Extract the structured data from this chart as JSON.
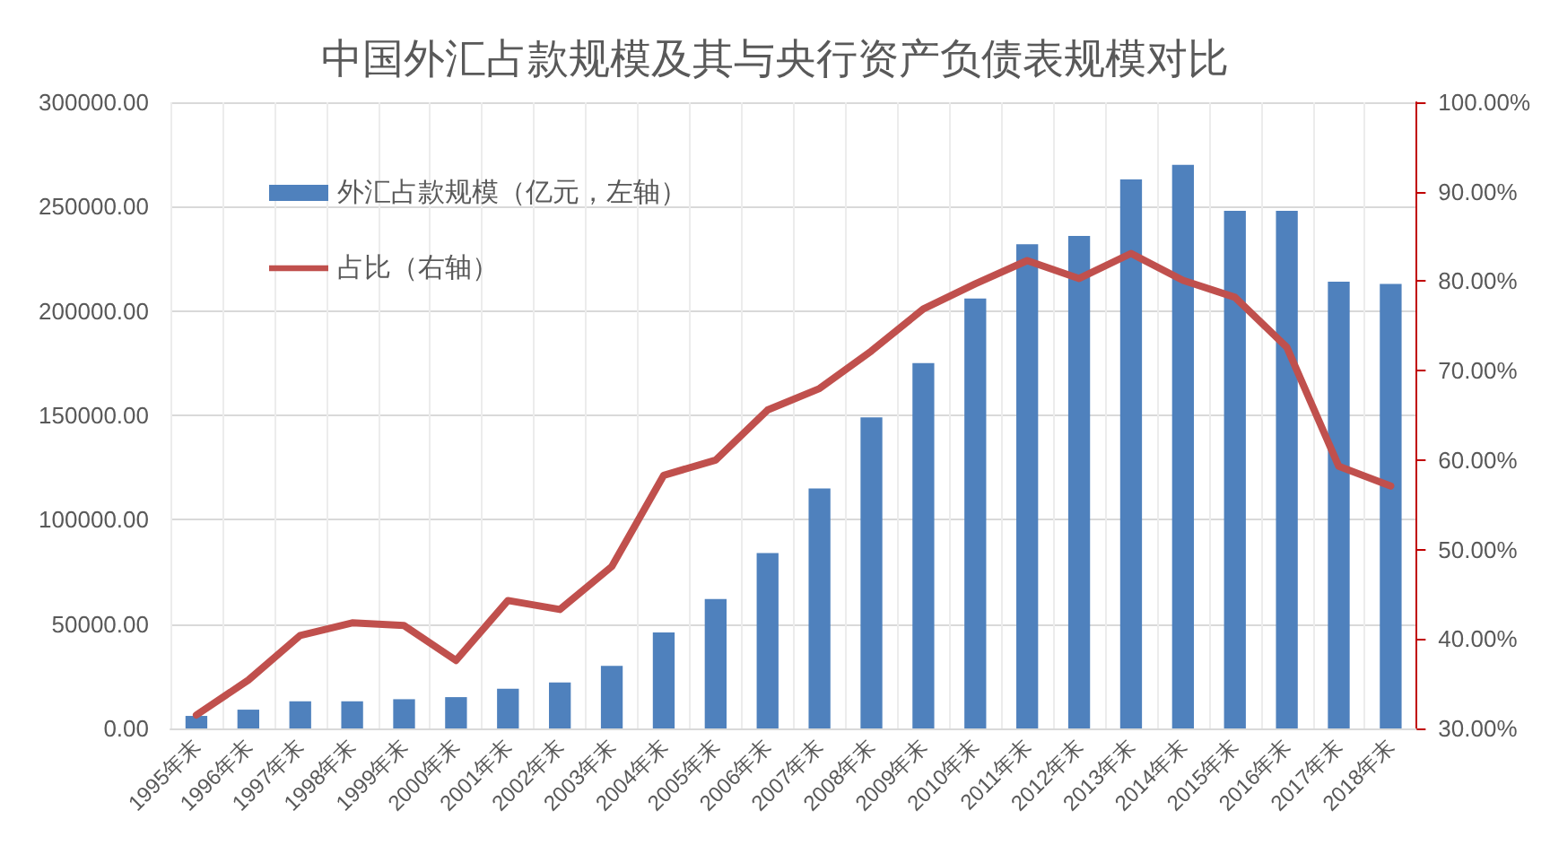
{
  "chart_data": {
    "type": "bar",
    "title": "中国外汇占款规模及其与央行资产负债表规模对比",
    "categories": [
      "1995年末",
      "1996年末",
      "1997年末",
      "1998年末",
      "1999年末",
      "2000年末",
      "2001年末",
      "2002年末",
      "2003年末",
      "2004年末",
      "2005年末",
      "2006年末",
      "2007年末",
      "2008年末",
      "2009年末",
      "2010年末",
      "2011年末",
      "2012年末",
      "2013年末",
      "2014年末",
      "2015年末",
      "2016年末",
      "2017年末",
      "2018年末"
    ],
    "series": [
      {
        "name": "外汇占款规模（亿元，左轴）",
        "color": "#4f81bd",
        "values": [
          6000,
          9000,
          13000,
          13000,
          14000,
          15000,
          19000,
          22000,
          30000,
          46000,
          62000,
          84000,
          115000,
          149000,
          175000,
          206000,
          232000,
          236000,
          263000,
          270000,
          248000,
          248000,
          214000,
          213000
        ]
      },
      {
        "name": "占比（右轴）",
        "type": "line",
        "axis": "y2",
        "color": "#c0504d",
        "values": [
          31.5,
          35.4,
          40.4,
          41.8,
          41.5,
          37.6,
          44.3,
          43.3,
          48.1,
          58.3,
          60.0,
          65.6,
          68.0,
          72.2,
          76.9,
          79.7,
          82.3,
          80.3,
          83.1,
          80.1,
          78.2,
          72.6,
          59.3,
          57.1
        ]
      }
    ],
    "ylim": [
      0,
      300000
    ],
    "yticks": [
      {
        "value": 0,
        "label": "0.00"
      },
      {
        "value": 50000,
        "label": "50000.00"
      },
      {
        "value": 100000,
        "label": "100000.00"
      },
      {
        "value": 150000,
        "label": "150000.00"
      },
      {
        "value": 200000,
        "label": "200000.00"
      },
      {
        "value": 250000,
        "label": "250000.00"
      },
      {
        "value": 300000,
        "label": "300000.00"
      }
    ],
    "y2lim": [
      30,
      100
    ],
    "y2ticks": [
      {
        "value": 30,
        "label": "30.00%"
      },
      {
        "value": 40,
        "label": "40.00%"
      },
      {
        "value": 50,
        "label": "50.00%"
      },
      {
        "value": 60,
        "label": "60.00%"
      },
      {
        "value": 70,
        "label": "70.00%"
      },
      {
        "value": 80,
        "label": "80.00%"
      },
      {
        "value": 90,
        "label": "90.00%"
      },
      {
        "value": 100,
        "label": "100.00%"
      }
    ],
    "grid": true,
    "legend": "top left",
    "marker": "none"
  }
}
